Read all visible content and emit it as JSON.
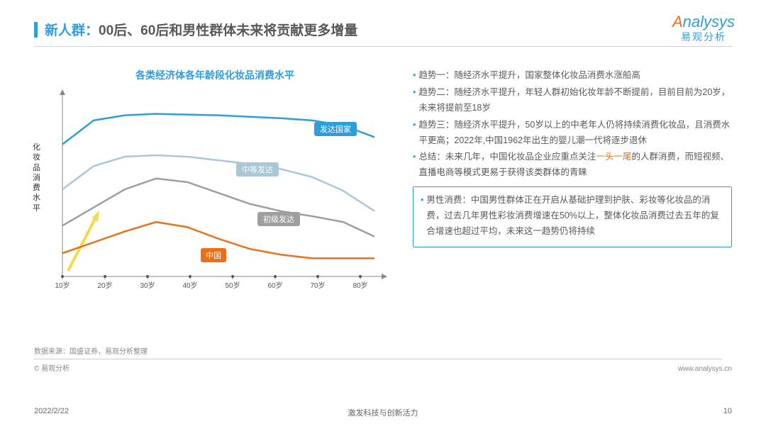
{
  "header": {
    "accent": "新人群：",
    "rest": "00后、60后和男性群体未来将贡献更多增量"
  },
  "logo": {
    "brand": "nalysys",
    "sub": "易观分析"
  },
  "chart": {
    "title": "各类经济体各年龄段化妆品消费水平",
    "yaxis": "化妆品消费水平",
    "xticks": [
      "10岁",
      "20岁",
      "30岁",
      "40岁",
      "50岁",
      "60岁",
      "70岁",
      "80岁"
    ],
    "labels": {
      "dev": "发达国家",
      "mid": "中等发达",
      "pri": "初级发达",
      "cn": "中国"
    },
    "colors": {
      "dev": "#2e9edb",
      "mid": "#a8c8d8",
      "pri": "#9e9e9e",
      "cn": "#e8701b",
      "axis": "#888",
      "arrow": "#f5d949"
    },
    "series": {
      "dev": [
        68,
        35,
        28,
        26,
        27,
        28,
        30,
        32,
        35,
        42,
        58
      ],
      "mid": [
        130,
        98,
        85,
        83,
        85,
        90,
        95,
        102,
        113,
        132,
        160
      ],
      "pri": [
        180,
        155,
        130,
        115,
        120,
        135,
        150,
        160,
        167,
        175,
        195
      ],
      "cn": [
        218,
        203,
        188,
        175,
        182,
        198,
        212,
        220,
        225,
        225,
        225
      ]
    },
    "line_width": 2.5
  },
  "bullets": [
    {
      "label": "趋势一：",
      "text": "随经济水平提升，国家整体化妆品消费水涨船高"
    },
    {
      "label": "趋势二：",
      "text": "随经济水平提升，年轻人群初始化妆年龄不断提前，目前目前为20岁，未来将提前至18岁"
    },
    {
      "label": "趋势三：",
      "text": "随经济水平提升，50岁以上的中老年人仍将持续消费化妆品，且消费水平更高；2022年,中国1962年出生的婴儿潮一代将逐步退休"
    },
    {
      "label": "总结：",
      "pre": "未来几年，中国化妆品企业应重点关注",
      "hi": "一头一尾",
      "post": "的人群消费，而短视频、直播电商等模式更易于获得该类群体的青睐"
    }
  ],
  "box": {
    "label": "男性消费：",
    "text": "中国男性群体正在开启从基础护理到护肤、彩妆等化妆品的消费，过去几年男性彩妆消费增速在50%以上，整体化妆品消费过去五年的复合增速也超过平均，未来这一趋势仍将持续"
  },
  "foot": {
    "src": "数据来源：国盛证券，易观分析整理",
    "copy": "© 易观分析",
    "url": "www.analysys.cn",
    "date": "2022/2/22",
    "slogan": "激发科技与创新活力",
    "page": "10"
  }
}
